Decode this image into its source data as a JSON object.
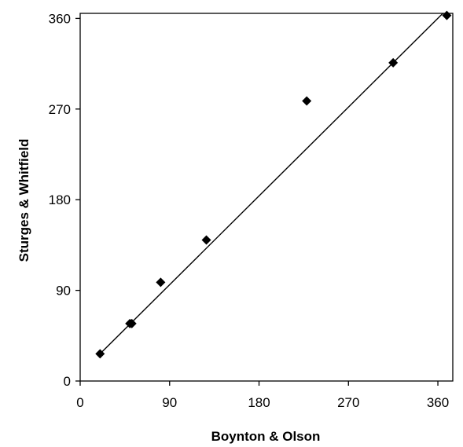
{
  "chart_data": {
    "type": "scatter",
    "title": "",
    "xlabel": "Boynton & Olson",
    "ylabel": "Sturges & Whitfield",
    "xlim": [
      0,
      375
    ],
    "ylim": [
      0,
      365
    ],
    "xticks": [
      0,
      90,
      180,
      270,
      360
    ],
    "yticks": [
      0,
      90,
      180,
      270,
      360
    ],
    "grid": false,
    "legend": "none",
    "points": [
      {
        "x": 20,
        "y": 27
      },
      {
        "x": 50,
        "y": 57
      },
      {
        "x": 52,
        "y": 57
      },
      {
        "x": 81,
        "y": 98
      },
      {
        "x": 127,
        "y": 140
      },
      {
        "x": 228,
        "y": 278
      },
      {
        "x": 315,
        "y": 316
      },
      {
        "x": 369,
        "y": 363
      }
    ],
    "trendline": {
      "type": "linear",
      "x_start": 20,
      "x_end": 365,
      "y_start": 27,
      "y_end": 365
    },
    "colors": {
      "marker": "#000000",
      "line": "#000000",
      "frame": "#000000"
    }
  }
}
